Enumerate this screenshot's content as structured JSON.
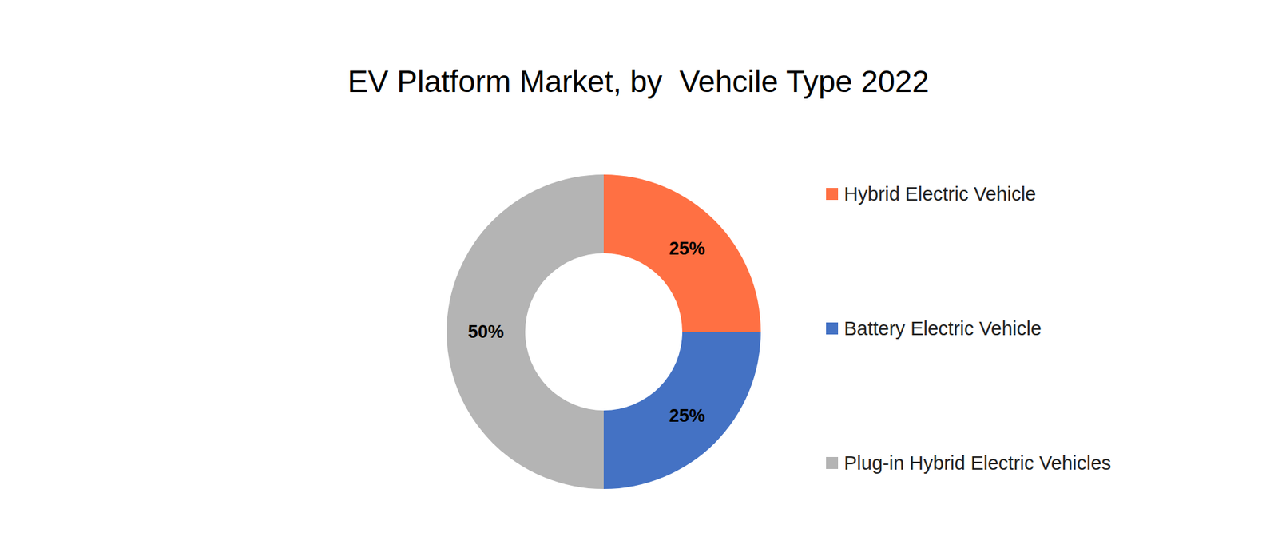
{
  "chart_data": {
    "type": "pie",
    "title": "EV Platform Market, by  Vehcile Type 2022",
    "categories": [
      "Hybrid Electric Vehicle",
      "Battery Electric Vehicle",
      "Plug-in Hybrid Electric Vehicles"
    ],
    "values": [
      25,
      25,
      50
    ],
    "value_labels": [
      "25%",
      "25%",
      "50%"
    ],
    "colors": [
      "#ff7043",
      "#4472c4",
      "#b4b4b4"
    ],
    "data_labels": true,
    "legend": "right"
  }
}
